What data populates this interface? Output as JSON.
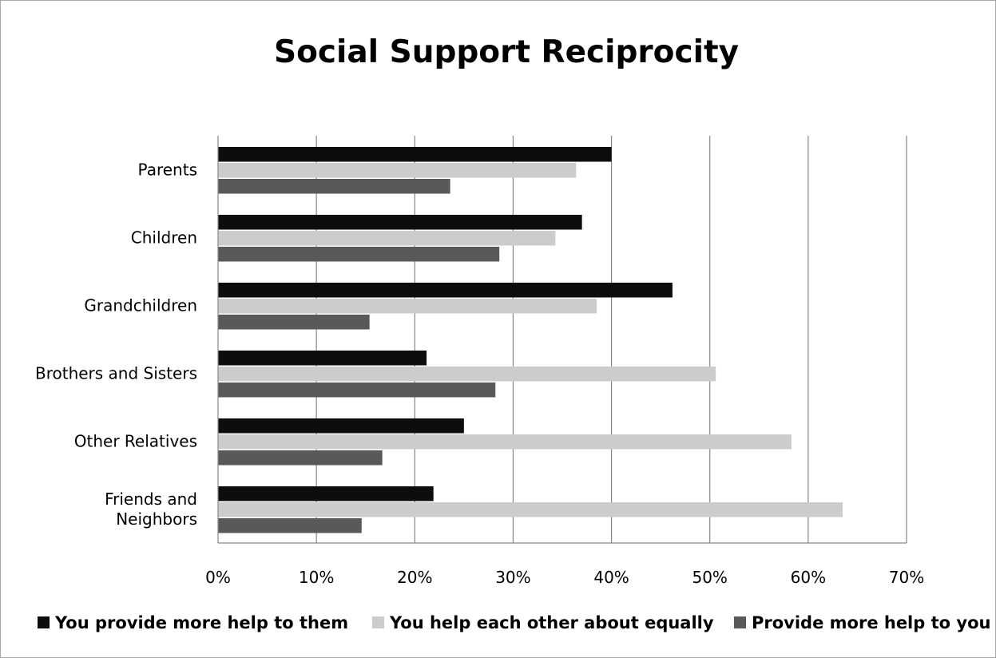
{
  "chart_data": {
    "type": "bar",
    "orientation": "horizontal",
    "title": "Social Support Reciprocity",
    "xlabel": "",
    "ylabel": "",
    "categories": [
      [
        "Parents"
      ],
      [
        "Children"
      ],
      [
        "Grandchildren"
      ],
      [
        "Brothers and Sisters"
      ],
      [
        "Other Relatives"
      ],
      [
        "Friends and",
        "Neighbors"
      ]
    ],
    "series": [
      {
        "name": "You provide more help to them",
        "color": "#0d0d0d",
        "values": [
          40,
          37,
          46.2,
          21.2,
          25,
          21.9
        ]
      },
      {
        "name": "You help each other about equally",
        "color": "#cccccc",
        "values": [
          36.4,
          34.3,
          38.5,
          50.6,
          58.3,
          63.5
        ]
      },
      {
        "name": "Provide more help to you",
        "color": "#595959",
        "values": [
          23.6,
          28.6,
          15.4,
          28.2,
          16.7,
          14.6
        ]
      }
    ],
    "xlim": [
      0,
      70
    ],
    "xticks": [
      0,
      10,
      20,
      30,
      40,
      50,
      60,
      70
    ],
    "tick_format": "{v}%",
    "grid": "vertical",
    "legend_position": "bottom"
  }
}
